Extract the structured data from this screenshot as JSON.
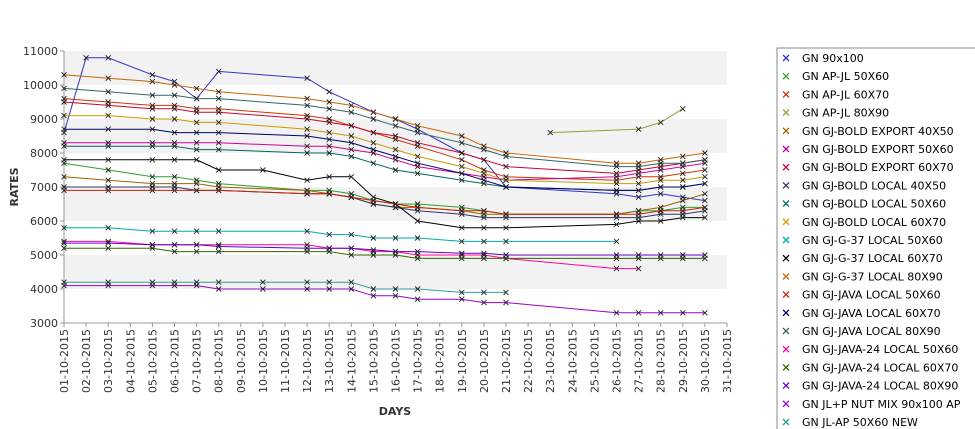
{
  "chart_data": {
    "type": "line",
    "title": "",
    "xlabel": "DAYS",
    "ylabel": "RATES",
    "ylim": [
      3000,
      11000
    ],
    "yticks": [
      3000,
      4000,
      5000,
      6000,
      7000,
      8000,
      9000,
      10000,
      11000
    ],
    "categories": [
      "01-10-2015",
      "02-10-2015",
      "03-10-2015",
      "04-10-2015",
      "05-10-2015",
      "06-10-2015",
      "07-10-2015",
      "08-10-2015",
      "09-10-2015",
      "10-10-2015",
      "11-10-2015",
      "12-10-2015",
      "13-10-2015",
      "14-10-2015",
      "15-10-2015",
      "16-10-2015",
      "17-10-2015",
      "18-10-2015",
      "19-10-2015",
      "20-10-2015",
      "21-10-2015",
      "22-10-2015",
      "23-10-2015",
      "24-10-2015",
      "25-10-2015",
      "26-10-2015",
      "27-10-2015",
      "28-10-2015",
      "29-10-2015",
      "30-10-2015",
      "31-10-2015"
    ],
    "grid": "alternating horizontal bands",
    "legend_position": "right",
    "marker": "x",
    "series": [
      {
        "name": "GN 90x100",
        "color": "#3333cc",
        "values": [
          8600,
          10800,
          10800,
          null,
          10300,
          10100,
          9600,
          10400,
          null,
          null,
          null,
          10200,
          9800,
          null,
          9200,
          9000,
          8700,
          null,
          8000,
          7800,
          7000,
          null,
          null,
          null,
          null,
          6800,
          6700,
          6800,
          6700,
          6600,
          null
        ]
      },
      {
        "name": "GN AP-JL 50X60",
        "color": "#2ca02c",
        "values": [
          7700,
          null,
          7500,
          null,
          7300,
          7300,
          7200,
          7100,
          null,
          null,
          null,
          6900,
          6900,
          6800,
          6600,
          6500,
          6500,
          null,
          6400,
          6300,
          6200,
          null,
          null,
          null,
          null,
          6200,
          6300,
          6300,
          6400,
          6400,
          null
        ]
      },
      {
        "name": "GN AP-JL 60X70",
        "color": "#cc3300",
        "values": [
          9600,
          null,
          9500,
          null,
          9400,
          9400,
          9300,
          9300,
          null,
          null,
          null,
          9100,
          9000,
          8800,
          8600,
          8400,
          8200,
          null,
          7800,
          7500,
          7300,
          null,
          null,
          null,
          null,
          7200,
          7300,
          7300,
          7400,
          7500,
          null
        ]
      },
      {
        "name": "GN AP-JL 80X90",
        "color": "#999933",
        "values": [
          null,
          null,
          null,
          null,
          null,
          null,
          null,
          null,
          null,
          null,
          null,
          null,
          null,
          null,
          null,
          null,
          null,
          null,
          null,
          null,
          null,
          null,
          8600,
          null,
          null,
          null,
          8700,
          8900,
          9300,
          null,
          null
        ]
      },
      {
        "name": "GN GJ-BOLD EXPORT 40X50",
        "color": "#996600",
        "values": [
          7300,
          null,
          7200,
          null,
          7100,
          7100,
          7100,
          7000,
          null,
          null,
          null,
          6900,
          6800,
          6700,
          6500,
          6400,
          6400,
          null,
          6300,
          6200,
          6200,
          null,
          null,
          null,
          null,
          6200,
          6300,
          6400,
          6600,
          6800,
          null
        ]
      },
      {
        "name": "GN GJ-BOLD EXPORT 50X60",
        "color": "#cc0099",
        "values": [
          8300,
          null,
          8300,
          null,
          8300,
          8300,
          8300,
          8300,
          null,
          null,
          null,
          8200,
          8200,
          8100,
          8000,
          7800,
          7600,
          null,
          7400,
          7300,
          7200,
          null,
          null,
          null,
          null,
          7300,
          7400,
          7500,
          7600,
          7700,
          null
        ]
      },
      {
        "name": "GN GJ-BOLD EXPORT 60X70",
        "color": "#cc0033",
        "values": [
          9500,
          null,
          9400,
          null,
          9300,
          9300,
          9200,
          9200,
          null,
          null,
          null,
          9000,
          8900,
          8800,
          8600,
          8500,
          8300,
          null,
          8000,
          7800,
          7600,
          null,
          null,
          null,
          null,
          7400,
          7500,
          7600,
          7700,
          7800,
          null
        ]
      },
      {
        "name": "GN GJ-BOLD LOCAL 40X50",
        "color": "#333366",
        "values": [
          7000,
          null,
          7000,
          null,
          7000,
          7000,
          6900,
          6900,
          null,
          null,
          null,
          6800,
          6800,
          6700,
          6500,
          6400,
          6300,
          null,
          6200,
          6100,
          6100,
          null,
          null,
          null,
          null,
          6100,
          6100,
          6200,
          6200,
          6300,
          null
        ]
      },
      {
        "name": "GN GJ-BOLD LOCAL 50X60",
        "color": "#006666",
        "values": [
          8200,
          null,
          8200,
          null,
          8200,
          8200,
          8100,
          8100,
          null,
          null,
          null,
          8000,
          8000,
          7900,
          7700,
          7500,
          7400,
          null,
          7200,
          7100,
          7000,
          null,
          null,
          null,
          null,
          6900,
          6900,
          7000,
          7000,
          7100,
          null
        ]
      },
      {
        "name": "GN GJ-BOLD LOCAL 60X70",
        "color": "#cc9900",
        "values": [
          9100,
          null,
          9100,
          null,
          9000,
          9000,
          8900,
          8900,
          null,
          null,
          null,
          8700,
          8600,
          8500,
          8300,
          8100,
          7900,
          null,
          7600,
          7400,
          7200,
          null,
          null,
          null,
          null,
          7100,
          7100,
          7200,
          7200,
          7300,
          null
        ]
      },
      {
        "name": "GN GJ-G-37 LOCAL 50X60",
        "color": "#00aaaa",
        "values": [
          5800,
          null,
          5800,
          null,
          5700,
          5700,
          5700,
          5700,
          null,
          null,
          null,
          5700,
          5600,
          5600,
          5500,
          5500,
          5500,
          null,
          5400,
          5400,
          5400,
          null,
          null,
          null,
          null,
          5400,
          null,
          null,
          null,
          null,
          null
        ]
      },
      {
        "name": "GN GJ-G-37 LOCAL 60X70",
        "color": "#000000",
        "values": [
          7800,
          null,
          7800,
          null,
          7800,
          7800,
          7800,
          7500,
          null,
          7500,
          null,
          7200,
          7300,
          7300,
          6700,
          6500,
          6000,
          null,
          5800,
          5800,
          5800,
          null,
          null,
          null,
          null,
          5900,
          6000,
          6000,
          6100,
          6100,
          null
        ]
      },
      {
        "name": "GN GJ-G-37 LOCAL 80X90",
        "color": "#cc6600",
        "values": [
          10300,
          null,
          10200,
          null,
          10100,
          10000,
          9900,
          9800,
          null,
          null,
          null,
          9600,
          9500,
          9400,
          9200,
          9000,
          8800,
          null,
          8500,
          8200,
          8000,
          null,
          null,
          null,
          null,
          7700,
          7700,
          7800,
          7900,
          8000,
          null
        ]
      },
      {
        "name": "GN GJ-JAVA LOCAL 50X60",
        "color": "#cc2200",
        "values": [
          6900,
          null,
          6900,
          null,
          6900,
          6900,
          6900,
          6900,
          null,
          null,
          null,
          6800,
          6800,
          6700,
          6600,
          6500,
          6400,
          null,
          6300,
          6300,
          6200,
          null,
          null,
          null,
          null,
          6200,
          6200,
          6300,
          6300,
          6400,
          null
        ]
      },
      {
        "name": "GN GJ-JAVA LOCAL 60X70",
        "color": "#000066",
        "values": [
          8700,
          null,
          8700,
          null,
          8700,
          8600,
          8600,
          8600,
          null,
          null,
          null,
          8500,
          8400,
          8300,
          8100,
          7900,
          7700,
          null,
          7400,
          7200,
          7000,
          null,
          null,
          null,
          null,
          6900,
          6900,
          7000,
          7000,
          7100,
          null
        ]
      },
      {
        "name": "GN GJ-JAVA LOCAL 80X90",
        "color": "#336666",
        "values": [
          9900,
          null,
          9800,
          null,
          9700,
          9700,
          9600,
          9600,
          null,
          null,
          null,
          9400,
          9300,
          9200,
          9000,
          8800,
          8600,
          null,
          8300,
          8100,
          7900,
          null,
          null,
          null,
          null,
          7600,
          7600,
          7700,
          7700,
          7800,
          null
        ]
      },
      {
        "name": "GN GJ-JAVA-24 LOCAL 50X60",
        "color": "#ff0099",
        "values": [
          5400,
          null,
          5400,
          null,
          5300,
          5300,
          5300,
          5300,
          null,
          null,
          null,
          5300,
          5200,
          5200,
          5100,
          5100,
          5000,
          null,
          5000,
          5000,
          4900,
          null,
          null,
          null,
          null,
          4600,
          4600,
          null,
          null,
          null,
          null
        ]
      },
      {
        "name": "GN GJ-JAVA-24 LOCAL 60X70",
        "color": "#336600",
        "values": [
          5200,
          null,
          5200,
          null,
          5200,
          5100,
          5100,
          5100,
          null,
          null,
          null,
          5100,
          5100,
          5000,
          5000,
          5000,
          4900,
          null,
          4900,
          4900,
          4900,
          null,
          null,
          null,
          null,
          4900,
          4900,
          4900,
          4900,
          4900,
          null
        ]
      },
      {
        "name": "GN GJ-JAVA-24 LOCAL 80X90",
        "color": "#6600cc",
        "values": [
          5350,
          null,
          5350,
          null,
          5300,
          5300,
          5300,
          5250,
          null,
          null,
          null,
          5200,
          5200,
          5200,
          5150,
          5100,
          5100,
          null,
          5050,
          5050,
          5000,
          null,
          null,
          null,
          null,
          5000,
          5000,
          5000,
          5000,
          5000,
          null
        ]
      },
      {
        "name": "GN JL+P NUT MIX 90x100 AP",
        "color": "#9900cc",
        "values": [
          4100,
          null,
          4100,
          null,
          4100,
          4100,
          4100,
          4000,
          null,
          4000,
          null,
          4000,
          4000,
          4000,
          3800,
          3800,
          3700,
          null,
          3700,
          3600,
          3600,
          null,
          null,
          null,
          null,
          3300,
          3300,
          3300,
          3300,
          3300,
          null
        ]
      },
      {
        "name": "GN JL-AP 50X60 NEW",
        "color": "#339999",
        "values": [
          4200,
          null,
          4200,
          null,
          4200,
          4200,
          4200,
          4200,
          null,
          4200,
          null,
          4200,
          4200,
          4200,
          4000,
          4000,
          4000,
          null,
          3900,
          3900,
          3900,
          null,
          null,
          null,
          null,
          null,
          null,
          null,
          null,
          null,
          null
        ]
      }
    ]
  }
}
